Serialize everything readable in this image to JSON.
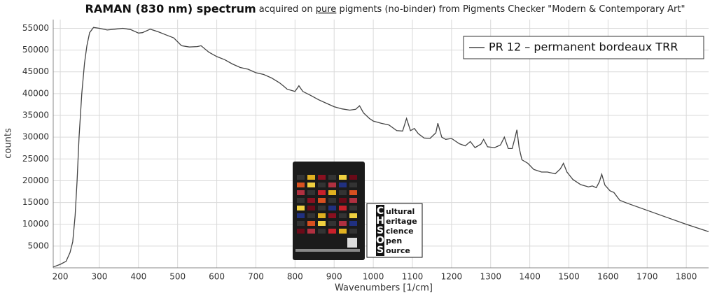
{
  "chart_data": {
    "type": "line",
    "title_parts": [
      "RAMAN (830 nm) spectrum",
      " acquired on ",
      "pure",
      " pigments (no-binder) from Pigments Checker \"Modern & Contemporary Art\""
    ],
    "x_label": "Wavenumbers [1/cm]",
    "y_label": "counts",
    "xlim": [
      182,
      1857
    ],
    "ylim": [
      0,
      57000
    ],
    "xticks": [
      200,
      300,
      400,
      500,
      600,
      700,
      800,
      900,
      1000,
      1100,
      1200,
      1300,
      1400,
      1500,
      1600,
      1700,
      1800
    ],
    "yticks": [
      5000,
      10000,
      15000,
      20000,
      25000,
      30000,
      35000,
      40000,
      45000,
      50000,
      55000
    ],
    "grid": true,
    "legend": "top-right",
    "series": [
      {
        "name": "PR 12 – permanent bordeaux TRR",
        "color": "#444444",
        "x": [
          182,
          200,
          215,
          225,
          232,
          238,
          243,
          248,
          255,
          262,
          268,
          275,
          285,
          300,
          320,
          340,
          360,
          380,
          400,
          410,
          430,
          450,
          470,
          490,
          510,
          530,
          550,
          560,
          580,
          600,
          620,
          640,
          660,
          680,
          700,
          720,
          740,
          760,
          770,
          780,
          800,
          810,
          820,
          840,
          860,
          880,
          900,
          920,
          940,
          955,
          965,
          975,
          990,
          1000,
          1020,
          1040,
          1060,
          1075,
          1085,
          1095,
          1105,
          1115,
          1130,
          1145,
          1160,
          1165,
          1175,
          1185,
          1200,
          1220,
          1235,
          1248,
          1260,
          1275,
          1282,
          1292,
          1310,
          1325,
          1335,
          1345,
          1355,
          1362,
          1367,
          1373,
          1380,
          1395,
          1410,
          1430,
          1445,
          1455,
          1465,
          1478,
          1486,
          1495,
          1510,
          1530,
          1550,
          1560,
          1570,
          1578,
          1584,
          1592,
          1605,
          1615,
          1630,
          1650,
          1700,
          1750,
          1800,
          1857
        ],
        "values": [
          200,
          800,
          1500,
          3500,
          6000,
          12000,
          20000,
          30000,
          40000,
          47000,
          51000,
          54000,
          55200,
          55000,
          54600,
          54800,
          55000,
          54700,
          53900,
          54000,
          54800,
          54200,
          53500,
          52800,
          51000,
          50700,
          50800,
          51000,
          49500,
          48500,
          47800,
          46800,
          46000,
          45600,
          44800,
          44400,
          43600,
          42500,
          41800,
          41000,
          40500,
          41800,
          40500,
          39600,
          38600,
          37800,
          37000,
          36500,
          36200,
          36400,
          37200,
          35600,
          34300,
          33700,
          33200,
          32800,
          31500,
          31400,
          34300,
          31500,
          32000,
          30800,
          29800,
          29700,
          31000,
          33200,
          30000,
          29500,
          29700,
          28500,
          28000,
          29000,
          27600,
          28400,
          29500,
          27800,
          27600,
          28200,
          30000,
          27400,
          27400,
          29800,
          31700,
          27500,
          24800,
          24000,
          22600,
          22000,
          22000,
          21800,
          21600,
          22700,
          24000,
          22000,
          20300,
          19100,
          18600,
          18800,
          18400,
          19800,
          21500,
          19000,
          17700,
          17300,
          15500,
          14800,
          13200,
          11600,
          10000,
          8300
        ]
      }
    ]
  },
  "logo": {
    "letters": [
      "C",
      "H",
      "S",
      "O",
      "S"
    ],
    "words": [
      "ultural",
      "eritage",
      "cience",
      "pen",
      "ource"
    ]
  }
}
